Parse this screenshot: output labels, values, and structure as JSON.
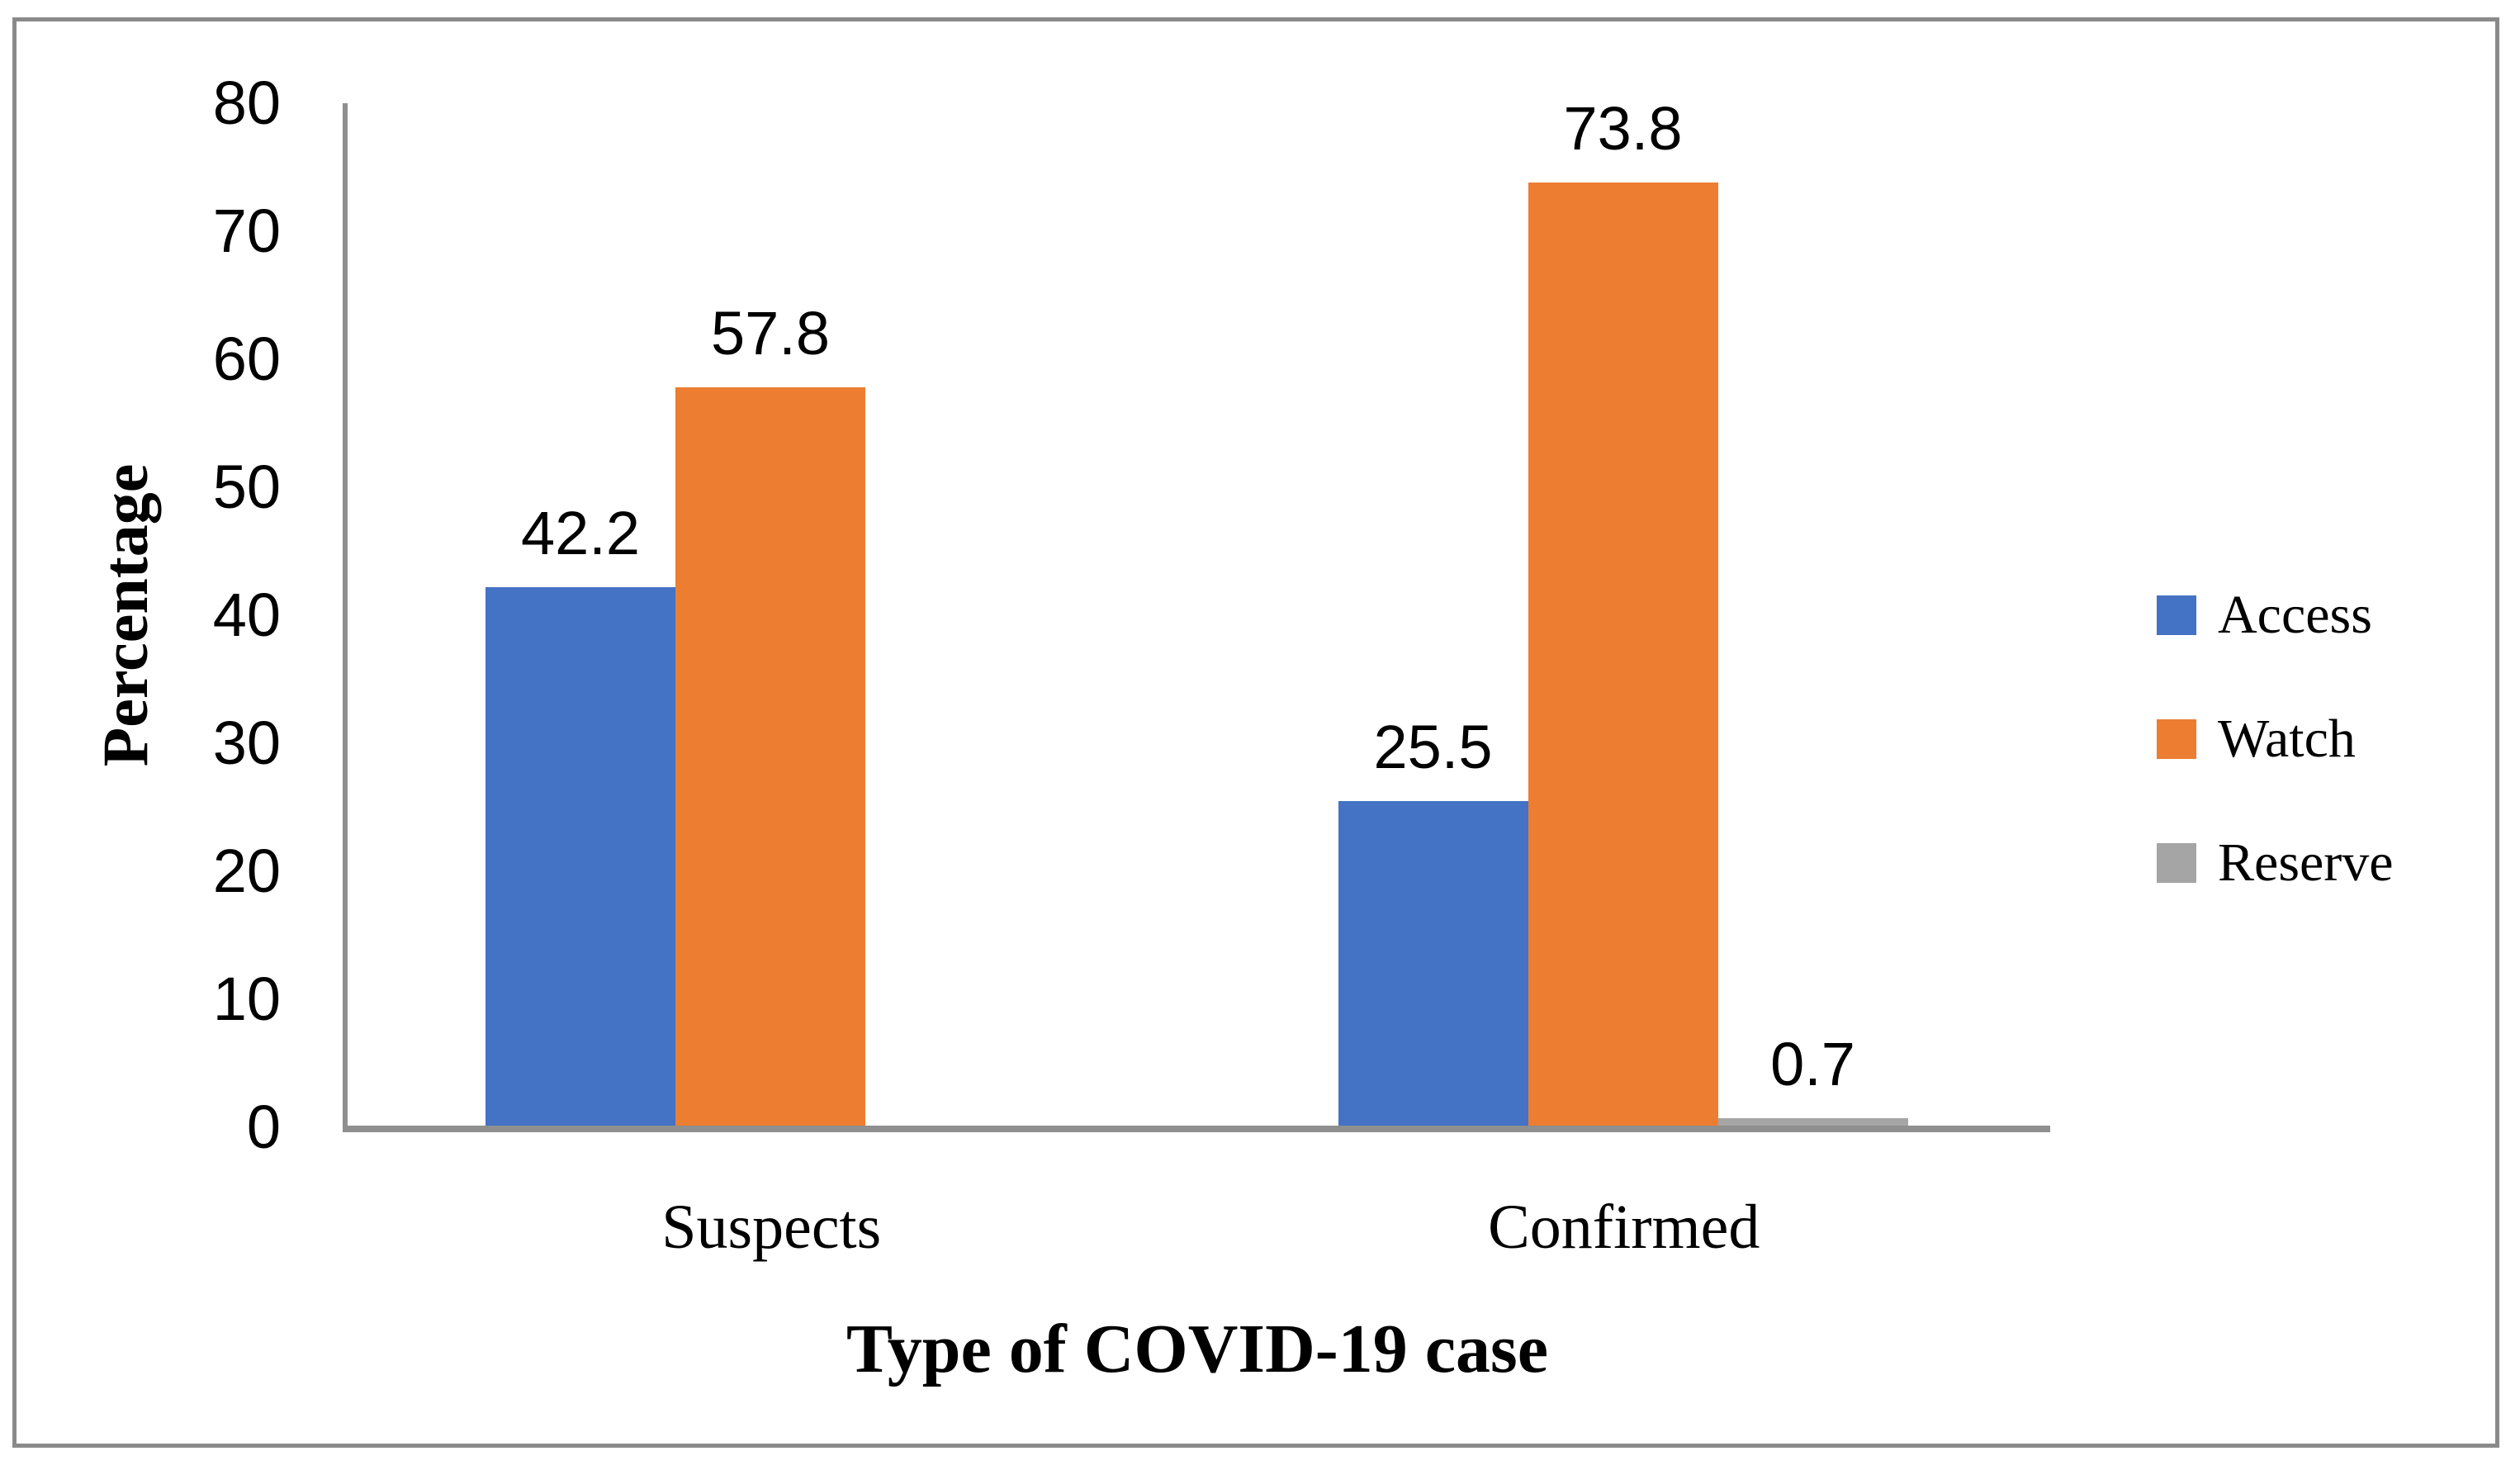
{
  "figure": {
    "background": "#FFFFFF",
    "border_color": "#8A8A8A",
    "axis_color": "#8F8F8F",
    "text_color": "#000000"
  },
  "chart_data": {
    "type": "bar",
    "categories": [
      "Suspects",
      "Confirmed"
    ],
    "series": [
      {
        "name": "Access",
        "color": "#4472C4",
        "values": [
          42.2,
          25.5
        ]
      },
      {
        "name": "Watch",
        "color": "#ED7D31",
        "values": [
          57.8,
          73.8
        ]
      },
      {
        "name": "Reserve",
        "color": "#A5A5A5",
        "values": [
          null,
          0.7
        ]
      }
    ],
    "data_labels": [
      {
        "category": "Suspects",
        "series": "Access",
        "label": "42.2"
      },
      {
        "category": "Suspects",
        "series": "Watch",
        "label": "57.8"
      },
      {
        "category": "Confirmed",
        "series": "Access",
        "label": "25.5"
      },
      {
        "category": "Confirmed",
        "series": "Watch",
        "label": "73.8"
      },
      {
        "category": "Confirmed",
        "series": "Reserve",
        "label": "0.7"
      }
    ],
    "title": "",
    "xlabel": "Type of COVID-19 case",
    "ylabel": "Percentage",
    "ylim": [
      0,
      80
    ],
    "ytick_step": 10,
    "yticks": [
      0,
      10,
      20,
      30,
      40,
      50,
      60,
      70,
      80
    ],
    "grid": false,
    "legend_position": "right"
  }
}
